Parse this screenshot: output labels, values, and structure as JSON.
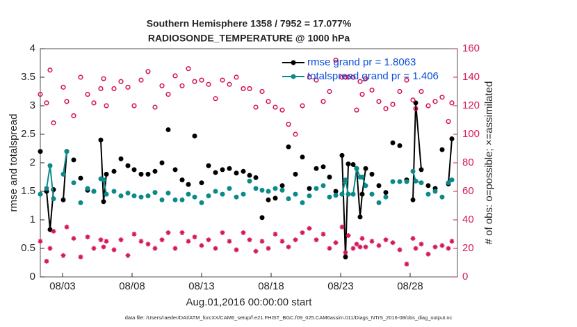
{
  "chart_data": {
    "type": "line",
    "title": "Southern Hemisphere 1358 / 7952 = 17.077%",
    "subtitle": "RADIOSONDE_TEMPERATURE @ 1000 hPa",
    "x_label": "Aug.01,2016 00:00:00 start",
    "y_label": "rmse and totalspread",
    "y2_label": "# of obs: o=possible; ×=assimilated",
    "footnote": "data file: /Users/raeder/DAI/ATM_forcXX/CAM6_setup/f.e21.FHIST_BGC.f09_025.CAM6assim.011/Diags_NTrS_2016-08/obs_diag_output.nc",
    "xlim": [
      0.4,
      30.4
    ],
    "xticks": [
      {
        "value": 2,
        "label": "08/03"
      },
      {
        "value": 7,
        "label": "08/08"
      },
      {
        "value": 12,
        "label": "08/13"
      },
      {
        "value": 17,
        "label": "08/18"
      },
      {
        "value": 22,
        "label": "08/23"
      },
      {
        "value": 27,
        "label": "08/28"
      }
    ],
    "ylim": [
      0,
      4
    ],
    "yticks": [
      0,
      0.5,
      1,
      1.5,
      2,
      2.5,
      3,
      3.5,
      4
    ],
    "y2lim": [
      0,
      160
    ],
    "y2ticks": [
      0,
      20,
      40,
      60,
      80,
      100,
      120,
      140,
      160
    ],
    "y2_color": "#d6175e",
    "legend": "upper right",
    "legend_color": "#0b4fd8",
    "x": [
      0.4,
      0.6,
      0.85,
      1.1,
      1.35,
      1.7,
      2.05,
      2.3,
      2.55,
      2.8,
      3.05,
      3.3,
      3.55,
      3.8,
      4.0,
      4.25,
      4.5,
      4.75,
      4.95,
      5.15,
      5.4,
      5.7,
      5.95,
      6.2,
      6.45,
      6.7,
      6.9,
      7.15,
      7.4,
      7.65,
      7.9,
      8.15,
      8.4,
      8.65,
      8.9,
      9.15,
      9.4,
      9.6,
      9.85,
      10.1,
      10.35,
      10.6,
      10.8,
      11.05,
      11.3,
      11.5,
      11.75,
      12.0,
      12.25,
      12.5,
      12.75,
      13.0,
      13.25,
      13.5,
      13.75,
      14.0,
      14.25,
      14.5,
      14.75,
      15.0,
      15.2,
      15.45,
      15.7,
      15.9,
      16.1,
      16.35,
      16.6,
      16.8,
      17.05,
      17.3,
      17.55,
      17.8,
      18.0,
      18.25,
      18.5,
      18.75,
      19.0,
      19.25,
      19.5,
      19.75,
      20.0,
      20.25,
      20.5,
      20.75,
      21.0,
      21.2,
      21.45,
      21.65,
      21.9,
      22.1,
      22.35,
      22.55,
      22.7,
      22.9,
      23.15,
      23.4,
      23.55,
      23.8,
      24.0,
      24.25,
      24.5,
      24.75,
      25.0,
      25.25,
      25.5,
      25.75,
      26.0,
      26.25,
      26.5,
      26.75,
      27.0,
      27.2,
      27.4,
      27.8,
      28.05,
      28.3,
      28.55,
      28.8,
      29.05,
      29.3,
      29.5,
      29.75,
      30.0
    ],
    "series": [
      {
        "name": "rmse grand pr = 1.8063",
        "color": "#000000",
        "marker": "dot",
        "line": true,
        "values": [
          2.2,
          null,
          1.5,
          0.83,
          1.53,
          null,
          1.35,
          2.2,
          null,
          2.05,
          null,
          1.73,
          null,
          1.52,
          null,
          1.5,
          null,
          2.4,
          1.32,
          1.8,
          null,
          1.85,
          null,
          2.07,
          null,
          1.95,
          null,
          1.88,
          null,
          1.8,
          null,
          1.8,
          null,
          1.85,
          null,
          2.0,
          null,
          2.58,
          null,
          1.88,
          null,
          1.7,
          null,
          1.62,
          null,
          2.47,
          null,
          1.65,
          null,
          1.95,
          null,
          1.83,
          null,
          1.88,
          null,
          1.9,
          null,
          1.82,
          null,
          1.85,
          null,
          1.78,
          null,
          1.74,
          null,
          1.04,
          null,
          1.35,
          null,
          1.38,
          null,
          1.6,
          null,
          2.28,
          null,
          1.8,
          null,
          2.1,
          null,
          1.55,
          null,
          1.9,
          null,
          1.93,
          null,
          1.75,
          null,
          1.5,
          null,
          2.13,
          0.35,
          1.98,
          null,
          1.97,
          1.9,
          1.05,
          1.45,
          1.9,
          null,
          1.8,
          null,
          1.6,
          null,
          1.48,
          null,
          2.35,
          null,
          2.3,
          null,
          1.7,
          null,
          1.35,
          3.05,
          1.88,
          null,
          1.6,
          null,
          1.55,
          null,
          2.23,
          null,
          1.63,
          2.42
        ]
      },
      {
        "name": "totalspread grand pr = 1.406",
        "color": "#0b8a8a",
        "marker": "dot",
        "line": true,
        "values": [
          1.45,
          null,
          1.55,
          1.95,
          1.37,
          null,
          1.8,
          2.2,
          null,
          1.65,
          null,
          1.3,
          null,
          1.55,
          null,
          1.5,
          null,
          1.72,
          1.7,
          1.45,
          null,
          1.5,
          null,
          1.42,
          null,
          1.47,
          null,
          1.42,
          null,
          1.4,
          null,
          1.42,
          null,
          1.48,
          null,
          1.35,
          null,
          1.47,
          null,
          1.35,
          null,
          1.35,
          null,
          1.45,
          null,
          1.4,
          null,
          1.3,
          null,
          1.42,
          null,
          1.5,
          null,
          1.45,
          null,
          1.55,
          null,
          1.4,
          null,
          1.45,
          null,
          1.68,
          null,
          1.55,
          null,
          1.52,
          null,
          1.5,
          null,
          1.55,
          null,
          1.52,
          null,
          1.37,
          null,
          1.45,
          null,
          1.3,
          null,
          1.42,
          null,
          1.55,
          null,
          1.6,
          null,
          1.4,
          null,
          1.43,
          null,
          1.45,
          1.7,
          1.45,
          null,
          1.45,
          1.9,
          1.75,
          1.75,
          1.6,
          null,
          1.45,
          null,
          1.3,
          null,
          1.4,
          null,
          1.67,
          null,
          1.67,
          null,
          1.67,
          null,
          1.85,
          1.68,
          1.65,
          null,
          1.45,
          null,
          1.5,
          null,
          1.4,
          null,
          1.65,
          1.7
        ]
      },
      {
        "color": "#d6175e",
        "marker": "circle",
        "line": false,
        "axis": "y2",
        "values": [
          128,
          null,
          122,
          145,
          108,
          null,
          133,
          123,
          null,
          113,
          null,
          140,
          null,
          128,
          null,
          122,
          null,
          132,
          139,
          120,
          null,
          132,
          null,
          137,
          null,
          133,
          null,
          120,
          null,
          138,
          null,
          144,
          null,
          119,
          null,
          134,
          null,
          128,
          null,
          141,
          null,
          134,
          null,
          146,
          null,
          137,
          null,
          138,
          null,
          135,
          null,
          125,
          null,
          138,
          null,
          135,
          null,
          140,
          null,
          132,
          null,
          132,
          null,
          119,
          null,
          130,
          null,
          123,
          null,
          119,
          null,
          117,
          null,
          107,
          null,
          100,
          null,
          120,
          null,
          140,
          null,
          138,
          null,
          123,
          null,
          130,
          null,
          152,
          null,
          140,
          140,
          140,
          null,
          140,
          117,
          137,
          128,
          139,
          null,
          131,
          null,
          123,
          null,
          118,
          null,
          121,
          null,
          130,
          null,
          138,
          null,
          124,
          118,
          130,
          null,
          120,
          null,
          123,
          null,
          126,
          null,
          109,
          122
        ]
      },
      {
        "color": "#d6175e",
        "marker": "star",
        "line": false,
        "axis": "y2",
        "values": [
          25,
          null,
          11,
          20,
          32,
          null,
          15,
          35,
          null,
          27,
          null,
          14,
          null,
          28,
          null,
          20,
          null,
          26,
          21,
          25,
          null,
          19,
          null,
          26,
          null,
          15,
          null,
          30,
          null,
          25,
          null,
          23,
          null,
          20,
          null,
          26,
          null,
          31,
          null,
          20,
          null,
          31,
          null,
          25,
          null,
          28,
          null,
          22,
          null,
          26,
          null,
          20,
          null,
          31,
          null,
          25,
          null,
          19,
          null,
          31,
          null,
          26,
          null,
          18,
          null,
          25,
          null,
          20,
          null,
          30,
          null,
          25,
          null,
          21,
          null,
          26,
          null,
          31,
          null,
          34,
          null,
          26,
          null,
          30,
          null,
          20,
          null,
          24,
          null,
          35,
          17,
          29,
          null,
          20,
          23,
          21,
          27,
          21,
          null,
          25,
          null,
          22,
          null,
          26,
          null,
          24,
          null,
          19,
          null,
          9,
          null,
          27,
          20,
          23,
          null,
          16,
          null,
          21,
          null,
          22,
          null,
          20,
          25
        ]
      }
    ]
  }
}
